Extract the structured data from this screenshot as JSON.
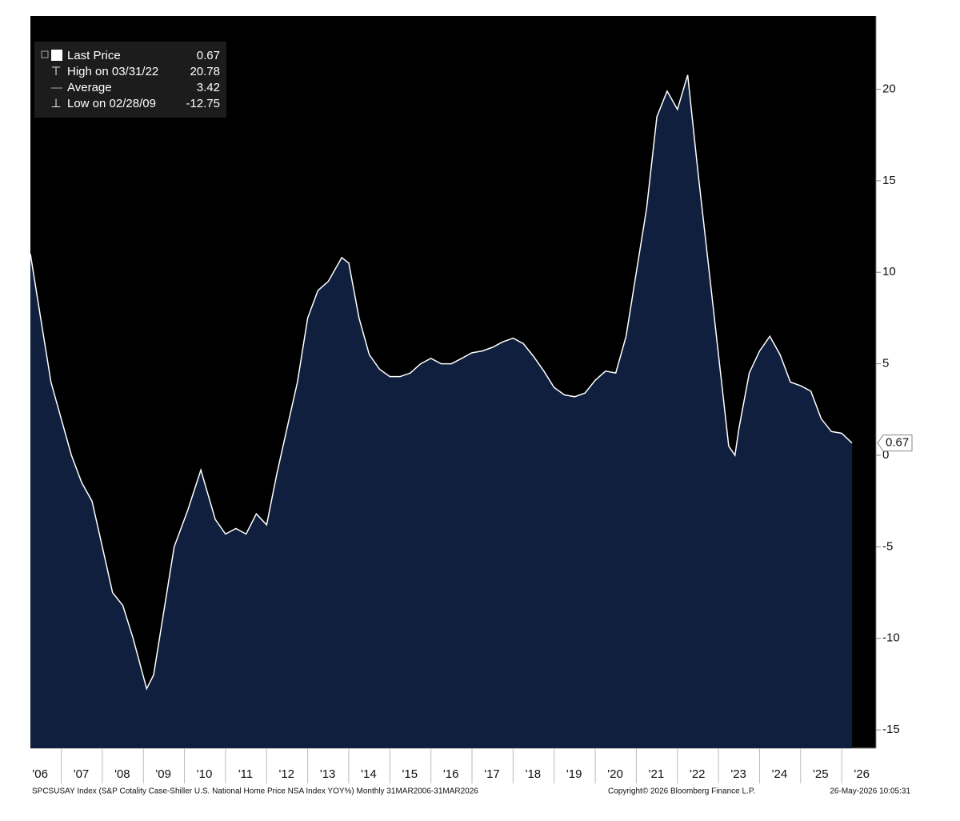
{
  "chart_data": {
    "type": "area",
    "legend": [
      {
        "label": "Last Price",
        "value": 0.67
      },
      {
        "label": "High on 03/31/22",
        "value": 20.78
      },
      {
        "label": "Average",
        "value": 3.42
      },
      {
        "label": "Low on 02/28/09",
        "value": -12.75
      }
    ],
    "x": [
      2006.25,
      2006.5,
      2006.75,
      2007.0,
      2007.25,
      2007.5,
      2007.75,
      2008.0,
      2008.25,
      2008.5,
      2008.75,
      2009.08,
      2009.25,
      2009.5,
      2009.75,
      2010.08,
      2010.4,
      2010.75,
      2011.0,
      2011.25,
      2011.5,
      2011.75,
      2012.0,
      2012.25,
      2012.5,
      2012.75,
      2013.0,
      2013.25,
      2013.5,
      2013.83,
      2014.0,
      2014.25,
      2014.5,
      2014.75,
      2015.0,
      2015.25,
      2015.5,
      2015.75,
      2016.0,
      2016.25,
      2016.5,
      2016.75,
      2017.0,
      2017.25,
      2017.5,
      2017.75,
      2018.0,
      2018.25,
      2018.5,
      2018.75,
      2019.0,
      2019.25,
      2019.5,
      2019.75,
      2020.0,
      2020.25,
      2020.5,
      2020.75,
      2021.0,
      2021.25,
      2021.5,
      2021.75,
      2022.0,
      2022.25,
      2022.5,
      2022.75,
      2023.0,
      2023.25,
      2023.4,
      2023.5,
      2023.75,
      2024.0,
      2024.25,
      2024.5,
      2024.75,
      2025.0,
      2025.25,
      2025.5,
      2025.75,
      2026.0,
      2026.25
    ],
    "series": [
      {
        "name": "Last Price",
        "color": "#ffffff",
        "fill": "#0f1f3d",
        "values": [
          11.0,
          7.5,
          4.0,
          2.0,
          0.0,
          -1.5,
          -2.5,
          -5.0,
          -7.5,
          -8.2,
          -10.0,
          -12.75,
          -12.0,
          -8.5,
          -5.0,
          -3.0,
          -0.8,
          -3.5,
          -4.3,
          -4.0,
          -4.3,
          -3.2,
          -3.8,
          -1.0,
          1.5,
          4.0,
          7.5,
          9.0,
          9.5,
          10.8,
          10.5,
          7.5,
          5.5,
          4.7,
          4.3,
          4.3,
          4.5,
          5.0,
          5.3,
          5.0,
          5.0,
          5.3,
          5.6,
          5.7,
          5.9,
          6.2,
          6.4,
          6.1,
          5.4,
          4.6,
          3.7,
          3.3,
          3.2,
          3.4,
          4.1,
          4.6,
          4.5,
          6.5,
          10.0,
          13.5,
          18.5,
          19.9,
          18.9,
          20.78,
          15.5,
          10.5,
          5.5,
          0.5,
          0.0,
          1.5,
          4.5,
          5.7,
          6.5,
          5.5,
          4.0,
          3.8,
          3.5,
          2.0,
          1.3,
          1.2,
          0.67
        ]
      }
    ],
    "xlim": [
      2006.25,
      2026.25
    ],
    "xticks": [
      {
        "value": 2006,
        "label": "'06"
      },
      {
        "value": 2007,
        "label": "'07"
      },
      {
        "value": 2008,
        "label": "'08"
      },
      {
        "value": 2009,
        "label": "'09"
      },
      {
        "value": 2010,
        "label": "'10"
      },
      {
        "value": 2011,
        "label": "'11"
      },
      {
        "value": 2012,
        "label": "'12"
      },
      {
        "value": 2013,
        "label": "'13"
      },
      {
        "value": 2014,
        "label": "'14"
      },
      {
        "value": 2015,
        "label": "'15"
      },
      {
        "value": 2016,
        "label": "'16"
      },
      {
        "value": 2017,
        "label": "'17"
      },
      {
        "value": 2018,
        "label": "'18"
      },
      {
        "value": 2019,
        "label": "'19"
      },
      {
        "value": 2020,
        "label": "'20"
      },
      {
        "value": 2021,
        "label": "'21"
      },
      {
        "value": 2022,
        "label": "'22"
      },
      {
        "value": 2023,
        "label": "'23"
      },
      {
        "value": 2024,
        "label": "'24"
      },
      {
        "value": 2025,
        "label": "'25"
      },
      {
        "value": 2026,
        "label": "'26"
      }
    ],
    "ylim": [
      -16,
      24
    ],
    "yticks": [
      -15,
      -10,
      -5,
      0,
      5,
      10,
      15,
      20
    ],
    "footer": {
      "left": "SPCSUSAY Index (S&P Cotality Case-Shiller U.S. National Home Price NSA Index YOY%) Monthly 31MAR2006-31MAR2026",
      "center": "Copyright© 2026 Bloomberg Finance L.P.",
      "right": "26-May-2026 10:05:31"
    }
  }
}
